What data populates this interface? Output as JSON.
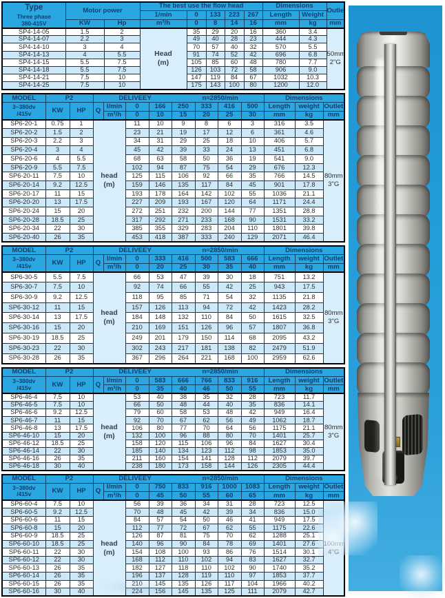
{
  "photo": {
    "label": "stainless-steel-submersible-pump",
    "background": "#2499d8"
  },
  "colors": {
    "header_blue": "#2aa6e0",
    "stripe_blue": "#cde8f7",
    "panel_blue": "#d9eefb",
    "navy_text": "#123e6e"
  },
  "tables": [
    {
      "id": "sp4-14",
      "style": "t0",
      "layout": "phase",
      "header": {
        "title": "Type",
        "subtitle1": "Three phase",
        "subtitle2": "380-415V",
        "power": "Motor power",
        "kw": "KW",
        "hp": "Hp",
        "flow_title": "The best use the flow head",
        "unit_top": "1/min",
        "unit_bottom": "m³/h",
        "flow_top": [
          "0",
          "133",
          "223",
          "267"
        ],
        "flow_bottom": [
          "0",
          "8",
          "14",
          "16"
        ],
        "dimensions": "Dimensions",
        "length": "Length",
        "weight": "Weight",
        "outlet": "Outlet",
        "mm": "mm",
        "kg": "kg",
        "head_line1": "Head",
        "head_line2": "(m)"
      },
      "outlet_value": [
        "50mm",
        "2\"G"
      ],
      "rows": [
        [
          "SP4-14-05",
          "1.5",
          "2",
          "35",
          "29",
          "20",
          "16",
          "360",
          "3.4"
        ],
        [
          "SP4-14-07",
          "2.2",
          "3",
          "49",
          "40",
          "28",
          "23",
          "444",
          "4.3"
        ],
        [
          "SP4-14-10",
          "3",
          "4",
          "70",
          "57",
          "40",
          "32",
          "570",
          "5.5"
        ],
        [
          "SP4-14-13",
          "4",
          "5.5",
          "91",
          "74",
          "52",
          "42",
          "696",
          "6.8"
        ],
        [
          "SP4-14-15",
          "5.5",
          "7.5",
          "105",
          "85",
          "60",
          "48",
          "780",
          "7.7"
        ],
        [
          "SP4-14-18",
          "5.5",
          "7.5",
          "126",
          "103",
          "72",
          "58",
          "906",
          "9.0"
        ],
        [
          "SP4-14-21",
          "7.5",
          "10",
          "147",
          "119",
          "84",
          "67",
          "1032",
          "10.3"
        ],
        [
          "SP4-14-25",
          "7.5",
          "10",
          "175",
          "143",
          "100",
          "80",
          "1200",
          "12.0"
        ]
      ]
    },
    {
      "id": "sp6-20",
      "style": "t1",
      "layout": "model",
      "header": {
        "title": "MODEL",
        "subtitle1": "3~380dv",
        "subtitle2": "/415v",
        "power": "P2",
        "kw": "KW",
        "hp": "HP",
        "q": "Q",
        "deliveey": "DELIVEEY",
        "speed": "n≈2850/min",
        "unit_top": "l/min",
        "unit_bottom": "m³/h",
        "flow_top": [
          "0",
          "166",
          "250",
          "333",
          "416",
          "500"
        ],
        "flow_bottom": [
          "0",
          "10",
          "15",
          "20",
          "25",
          "30"
        ],
        "dimensions": "Dimensions",
        "length": "Length",
        "weight": "weight",
        "outlet": "Outlet",
        "mm": "mm",
        "kg": "kg",
        "head_line1": "head",
        "head_line2": "(m)"
      },
      "outlet_value": [
        "80mm",
        "3\"G"
      ],
      "rows": [
        [
          "SP6-20-1",
          "0.75",
          "1",
          "11",
          "10",
          "9",
          "8",
          "6",
          "3",
          "316",
          "3.5"
        ],
        [
          "SP6-20-2",
          "1.5",
          "2",
          "23",
          "21",
          "19",
          "17",
          "12",
          "6",
          "361",
          "4.6"
        ],
        [
          "SP6-20-3",
          "2.2",
          "3",
          "34",
          "31",
          "29",
          "25",
          "18",
          "10",
          "406",
          "5.7"
        ],
        [
          "SP6-20-4",
          "3",
          "4",
          "45",
          "42",
          "39",
          "33",
          "24",
          "13",
          "451",
          "6.8"
        ],
        [
          "SP6-20-6",
          "4",
          "5.5",
          "68",
          "63",
          "58",
          "50",
          "36",
          "19",
          "541",
          "9.0"
        ],
        [
          "SP6-20-9",
          "5.5",
          "7.5",
          "102",
          "94",
          "87",
          "75",
          "54",
          "29",
          "676",
          "12.3"
        ],
        [
          "SP6-20-11",
          "7.5",
          "10",
          "125",
          "115",
          "106",
          "92",
          "66",
          "35",
          "766",
          "14.5"
        ],
        [
          "SP6-20-14",
          "9.2",
          "12.5",
          "159",
          "146",
          "135",
          "117",
          "84",
          "45",
          "901",
          "17.8"
        ],
        [
          "SP6-20-17",
          "11",
          "15",
          "193",
          "178",
          "164",
          "142",
          "102",
          "55",
          "1036",
          "21.1"
        ],
        [
          "SP6-20-20",
          "13",
          "17.5",
          "227",
          "209",
          "193",
          "167",
          "120",
          "64",
          "1171",
          "24.4"
        ],
        [
          "SP6-20-24",
          "15",
          "20",
          "272",
          "251",
          "232",
          "200",
          "144",
          "77",
          "1351",
          "28.8"
        ],
        [
          "SP6-20-28",
          "18.5",
          "25",
          "317",
          "292",
          "271",
          "233",
          "168",
          "90",
          "1531",
          "33.2"
        ],
        [
          "SP6-20-34",
          "22",
          "30",
          "385",
          "355",
          "329",
          "283",
          "204",
          "110",
          "1801",
          "39.8"
        ],
        [
          "SP6-20-40",
          "26",
          "35",
          "453",
          "418",
          "387",
          "333",
          "240",
          "129",
          "2071",
          "46.4"
        ]
      ]
    },
    {
      "id": "sp6-30",
      "style": "t2",
      "layout": "model",
      "header": {
        "title": "MODEL",
        "subtitle1": "3~380dv",
        "subtitle2": "/415v",
        "power": "P2",
        "kw": "KW",
        "hp": "HP",
        "q": "Q",
        "deliveey": "DELIVEEY",
        "speed": "n≈2850/min",
        "unit_top": "l/min",
        "unit_bottom": "m³/h",
        "flow_top": [
          "0",
          "333",
          "416",
          "500",
          "583",
          "666"
        ],
        "flow_bottom": [
          "0",
          "20",
          "25",
          "30",
          "35",
          "40"
        ],
        "dimensions": "Dimensions",
        "length": "Length",
        "weight": "weight",
        "outlet": "Outlet",
        "mm": "mm",
        "kg": "kg",
        "head_line1": "head",
        "head_line2": "(m)"
      },
      "outlet_value": [
        "80mm",
        "3\"G"
      ],
      "rows": [
        [
          "SP6-30-5",
          "5.5",
          "7.5",
          "66",
          "53",
          "47",
          "39",
          "30",
          "18",
          "751",
          "13.2"
        ],
        [
          "SP6-30-7",
          "7.5",
          "10",
          "92",
          "74",
          "66",
          "55",
          "42",
          "25",
          "943",
          "17.5"
        ],
        [
          "SP6-30-9",
          "9.2",
          "12.5",
          "118",
          "95",
          "85",
          "71",
          "54",
          "32",
          "1135",
          "21.8"
        ],
        [
          "SP6-30-12",
          "11",
          "15",
          "157",
          "126",
          "113",
          "94",
          "72",
          "42",
          "1423",
          "28.2"
        ],
        [
          "SP6-30-14",
          "13",
          "17.5",
          "184",
          "148",
          "132",
          "110",
          "84",
          "50",
          "1615",
          "32.5"
        ],
        [
          "SP6-30-16",
          "15",
          "20",
          "210",
          "169",
          "151",
          "126",
          "96",
          "57",
          "1807",
          "36.8"
        ],
        [
          "SP6-30-19",
          "18.5",
          "25",
          "249",
          "201",
          "179",
          "150",
          "114",
          "68",
          "2095",
          "43.2"
        ],
        [
          "SP6-30-23",
          "22",
          "30",
          "302",
          "243",
          "217",
          "181",
          "138",
          "82",
          "2479",
          "51.9"
        ],
        [
          "SP6-30-28",
          "26",
          "35",
          "367",
          "296",
          "264",
          "221",
          "168",
          "100",
          "2959",
          "62.6"
        ]
      ]
    },
    {
      "id": "sp6-46",
      "style": "t3",
      "layout": "model",
      "header": {
        "title": "MODEL",
        "subtitle1": "3~380dv",
        "subtitle2": "/415v",
        "power": "P2",
        "kw": "KW",
        "hp": "HP",
        "q": "Q",
        "deliveey": "DELIVEEY",
        "speed": "n≈2850/min",
        "unit_top": "l/min",
        "unit_bottom": "m³/h",
        "flow_top": [
          "0",
          "583",
          "666",
          "766",
          "833",
          "916"
        ],
        "flow_bottom": [
          "0",
          "35",
          "40",
          "46",
          "50",
          "55"
        ],
        "dimensions": "Dimensions",
        "length": "Length",
        "weight": "weight",
        "outlet": "Outlet",
        "mm": "mm",
        "kg": "kg",
        "head_line1": "head",
        "head_line2": "(m)"
      },
      "outlet_value": [
        "80mm",
        "3\"G"
      ],
      "rows": [
        [
          "SP6-46-4",
          "7.5",
          "10",
          "53",
          "40",
          "38",
          "35",
          "32",
          "28",
          "723",
          "11.7"
        ],
        [
          "SP6-46-5",
          "7.5",
          "10",
          "66",
          "50",
          "48",
          "44",
          "40",
          "35",
          "836",
          "14.1"
        ],
        [
          "SP6-46-6",
          "9.2",
          "12.5",
          "79",
          "60",
          "58",
          "53",
          "48",
          "42",
          "949",
          "16.4"
        ],
        [
          "SP6-46-7",
          "11",
          "15",
          "92",
          "70",
          "67",
          "62",
          "56",
          "49",
          "1062",
          "18.7"
        ],
        [
          "SP6-46-8",
          "13",
          "17.5",
          "106",
          "80",
          "77",
          "70",
          "64",
          "56",
          "1175",
          "21.1"
        ],
        [
          "SP6-46-10",
          "15",
          "20",
          "132",
          "100",
          "96",
          "88",
          "80",
          "70",
          "1401",
          "25.7"
        ],
        [
          "SP6-46-12",
          "18.5",
          "25",
          "158",
          "120",
          "115",
          "106",
          "96",
          "84",
          "1627",
          "30.4"
        ],
        [
          "SP6-46-14",
          "22",
          "30",
          "185",
          "140",
          "134",
          "123",
          "112",
          "98",
          "1853",
          "35.0"
        ],
        [
          "SP6-46-16",
          "26",
          "35",
          "211",
          "160",
          "154",
          "141",
          "128",
          "112",
          "2079",
          "39.7"
        ],
        [
          "SP6-46-18",
          "30",
          "40",
          "238",
          "180",
          "173",
          "158",
          "144",
          "126",
          "2305",
          "44.4"
        ]
      ]
    },
    {
      "id": "sp6-60",
      "style": "t4",
      "layout": "model",
      "header": {
        "title": "MODEL",
        "subtitle1": "3~380dv",
        "subtitle2": "/415v",
        "power": "P2",
        "kw": "KW",
        "hp": "HP",
        "q": "Q",
        "deliveey": "DELIVEEY",
        "speed": "n≈2850/min",
        "unit_top": "l/min",
        "unit_bottom": "m³/h",
        "flow_top": [
          "0",
          "750",
          "833",
          "916",
          "1000",
          "1083"
        ],
        "flow_bottom": [
          "0",
          "45",
          "50",
          "55",
          "60",
          "65"
        ],
        "dimensions": "Dimensions",
        "length": "Length",
        "weight": "weight",
        "outlet": "Outlet",
        "mm": "mm",
        "kg": "kg",
        "head_line1": "head",
        "head_line2": "(m)"
      },
      "outlet_value": [
        "100mm",
        "4\"G"
      ],
      "rows": [
        [
          "SP6-60-4",
          "7.5",
          "10",
          "56",
          "39",
          "36",
          "34",
          "31",
          "28",
          "723",
          "12.5"
        ],
        [
          "SP6-60-5",
          "9.2",
          "12.5",
          "70",
          "48",
          "45",
          "42",
          "39",
          "34",
          "836",
          "15.0"
        ],
        [
          "SP6-60-6",
          "11",
          "15",
          "84",
          "57",
          "54",
          "50",
          "46",
          "41",
          "949",
          "17.5"
        ],
        [
          "SP6-60-8",
          "15",
          "20",
          "112",
          "77",
          "72",
          "67",
          "62",
          "55",
          "1175",
          "22.6"
        ],
        [
          "SP6-60-9",
          "18.5",
          "25",
          "126",
          "87",
          "81",
          "75",
          "70",
          "62",
          "1288",
          "25.1"
        ],
        [
          "SP6-60-10",
          "18.5",
          "25",
          "140",
          "96",
          "90",
          "84",
          "78",
          "69",
          "1401",
          "27.6"
        ],
        [
          "SP6-60-11",
          "22",
          "30",
          "154",
          "108",
          "100",
          "93",
          "86",
          "76",
          "1514",
          "30.1"
        ],
        [
          "SP6-60-12",
          "22",
          "30",
          "168",
          "112",
          "110",
          "102",
          "94",
          "83",
          "1627",
          "32.7"
        ],
        [
          "SP6-60-13",
          "26",
          "35",
          "182",
          "127",
          "118",
          "110",
          "102",
          "90",
          "1740",
          "35.2"
        ],
        [
          "SP6-60-14",
          "26",
          "35",
          "196",
          "137",
          "128",
          "119",
          "110",
          "97",
          "1853",
          "37.7"
        ],
        [
          "SP6-60-15",
          "26",
          "35",
          "210",
          "145",
          "135",
          "126",
          "117",
          "104",
          "1966",
          "40.2"
        ],
        [
          "SP6-60-16",
          "30",
          "40",
          "224",
          "156",
          "145",
          "135",
          "125",
          "111",
          "2079",
          "42.7"
        ]
      ]
    }
  ]
}
